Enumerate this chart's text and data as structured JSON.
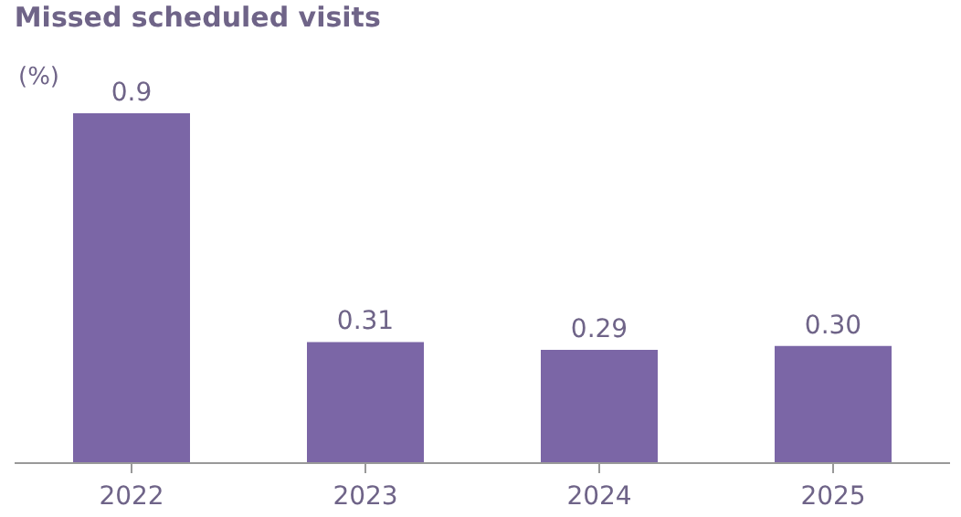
{
  "chart_data": {
    "type": "bar",
    "title": "Missed scheduled visits",
    "ylabel": "(%)",
    "categories": [
      "2022",
      "2023",
      "2024",
      "2025"
    ],
    "values": [
      0.9,
      0.31,
      0.29,
      0.3
    ],
    "value_labels": [
      "0.9",
      "0.31",
      "0.29",
      "0.30"
    ],
    "color": "#7b66a6"
  }
}
